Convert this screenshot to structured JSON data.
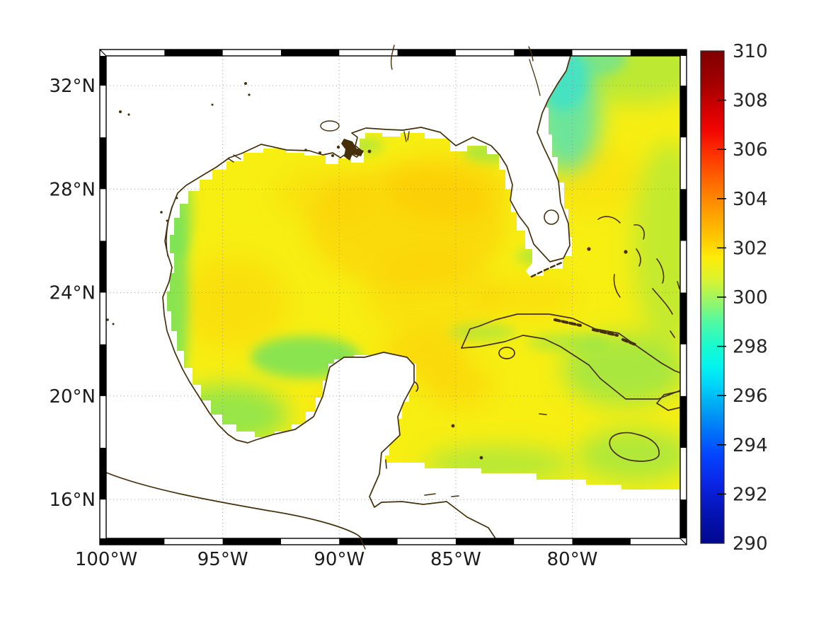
{
  "figure": {
    "background": "#ffffff",
    "title": "",
    "kind": "geographic pcolor map with zebra frame and colorbar"
  },
  "map": {
    "x_axis": {
      "ticks": [
        {
          "label": "100°W",
          "lon_w": 100
        },
        {
          "label": "95°W",
          "lon_w": 95
        },
        {
          "label": "90°W",
          "lon_w": 90
        },
        {
          "label": "85°W",
          "lon_w": 85
        },
        {
          "label": "80°W",
          "lon_w": 80
        }
      ]
    },
    "y_axis": {
      "ticks": [
        {
          "label": "32°N",
          "lat_n": 32
        },
        {
          "label": "28°N",
          "lat_n": 28
        },
        {
          "label": "24°N",
          "lat_n": 24
        },
        {
          "label": "20°N",
          "lat_n": 20
        },
        {
          "label": "16°N",
          "lat_n": 16
        }
      ]
    },
    "frame": {
      "style": "zebra",
      "segment_lon_deg": 2.5,
      "segment_lat_deg": 2.0,
      "colors": [
        "#000000",
        "#ffffff"
      ]
    },
    "grid": {
      "visible": true,
      "style": "dotted",
      "color": "#8c8c8c"
    },
    "land_color": "#ffffff",
    "coastline_color": "#46300a",
    "label_color": "#1c1c1c"
  },
  "colorbar": {
    "min": 290,
    "max": 310,
    "tick_labels": [
      "310",
      "308",
      "306",
      "304",
      "302",
      "300",
      "298",
      "296",
      "294",
      "292",
      "290"
    ],
    "tick_values": [
      310,
      308,
      306,
      304,
      302,
      300,
      298,
      296,
      294,
      292,
      290
    ],
    "marked_ticks": [
      308,
      306,
      304,
      302,
      300,
      298,
      296,
      294,
      292
    ],
    "colormap": "jet",
    "gradient_stops": [
      {
        "at": 0.0,
        "color": "#7f0100"
      },
      {
        "at": 0.07,
        "color": "#a50000"
      },
      {
        "at": 0.12,
        "color": "#d40000"
      },
      {
        "at": 0.16,
        "color": "#f10500"
      },
      {
        "at": 0.22,
        "color": "#ff3c00"
      },
      {
        "at": 0.28,
        "color": "#ff7500"
      },
      {
        "at": 0.33,
        "color": "#ffa000"
      },
      {
        "at": 0.38,
        "color": "#fdc800"
      },
      {
        "at": 0.42,
        "color": "#fcec09"
      },
      {
        "at": 0.46,
        "color": "#dff32b"
      },
      {
        "at": 0.5,
        "color": "#a5f55c"
      },
      {
        "at": 0.55,
        "color": "#52f9a2"
      },
      {
        "at": 0.6,
        "color": "#18fbd1"
      },
      {
        "at": 0.64,
        "color": "#04f4ee"
      },
      {
        "at": 0.68,
        "color": "#00d3f9"
      },
      {
        "at": 0.72,
        "color": "#00a9f2"
      },
      {
        "at": 0.77,
        "color": "#0076f8"
      },
      {
        "at": 0.82,
        "color": "#0345ff"
      },
      {
        "at": 0.88,
        "color": "#0b24e4"
      },
      {
        "at": 0.94,
        "color": "#0413b2"
      },
      {
        "at": 1.0,
        "color": "#03078f"
      }
    ]
  },
  "chart_data": {
    "type": "heatmap",
    "title": "",
    "xlabel": "",
    "ylabel": "",
    "x_ticks": [
      "100°W",
      "95°W",
      "90°W",
      "85°W",
      "80°W"
    ],
    "y_ticks": [
      "16°N",
      "20°N",
      "24°N",
      "28°N",
      "32°N"
    ],
    "lon_range_deg_w": [
      100,
      75.4
    ],
    "lat_range_deg_n": [
      14.5,
      33.2
    ],
    "colorbar_range": [
      290,
      310
    ],
    "colorbar_tick_step": 2,
    "field": "gridded sea-surface temperature field over the Gulf of Mexico, NW Caribbean and western Atlantic; land and no-data areas are white",
    "sampled_values": [
      {
        "area": "central Gulf of Mexico",
        "approx_value": 302.5
      },
      {
        "area": "NE Gulf warm patch",
        "approx_value": 303.0
      },
      {
        "area": "Yucatan Channel warm patch",
        "approx_value": 303.0
      },
      {
        "area": "Texas-Mexico coastal shelf fringe",
        "approx_value": 300.5
      },
      {
        "area": "Bay of Campeche fringe",
        "approx_value": 300.5
      },
      {
        "area": "NE Florida Atlantic nearshore",
        "approx_value": 298.5
      },
      {
        "area": "Atlantic east of Florida",
        "approx_value": 301.0
      },
      {
        "area": "waters around eastern Cuba",
        "approx_value": 300.5
      },
      {
        "area": "waters around Jamaica",
        "approx_value": 300.5
      }
    ],
    "legend": "vertical colorbar on right, ticks 290 to 310 every 2"
  }
}
